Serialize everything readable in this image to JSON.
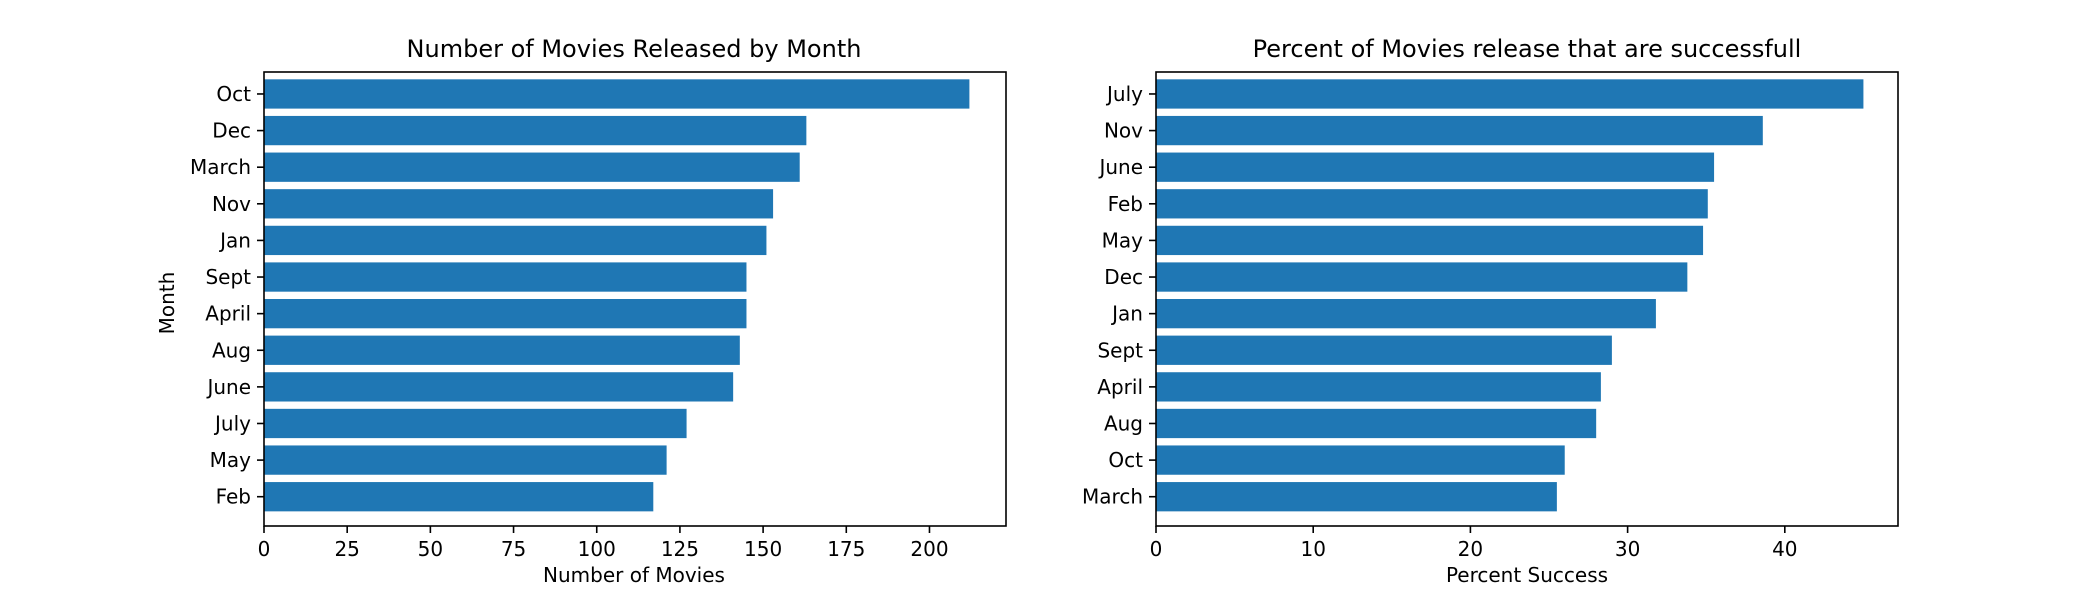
{
  "chart_data": [
    {
      "type": "bar",
      "orientation": "horizontal",
      "title": "Number of Movies Released by Month",
      "xlabel": "Number of Movies",
      "ylabel": "Month",
      "categories": [
        "Oct",
        "Dec",
        "March",
        "Nov",
        "Jan",
        "Sept",
        "April",
        "Aug",
        "June",
        "July",
        "May",
        "Feb"
      ],
      "values": [
        212,
        163,
        161,
        153,
        151,
        145,
        145,
        143,
        141,
        127,
        121,
        117
      ],
      "xlim": [
        0,
        223
      ],
      "xticks": [
        0,
        25,
        50,
        75,
        100,
        125,
        150,
        175,
        200
      ],
      "bar_color": "#1f77b4",
      "grid": false
    },
    {
      "type": "bar",
      "orientation": "horizontal",
      "title": "Percent of Movies release that are successfull",
      "xlabel": "Percent Success",
      "ylabel": "",
      "categories": [
        "July",
        "Nov",
        "June",
        "Feb",
        "May",
        "Dec",
        "Jan",
        "Sept",
        "April",
        "Aug",
        "Oct",
        "March"
      ],
      "values": [
        45.0,
        38.6,
        35.5,
        35.1,
        34.8,
        33.8,
        31.8,
        29.0,
        28.3,
        28.0,
        26.0,
        25.5
      ],
      "xlim": [
        0,
        47.2
      ],
      "xticks": [
        0,
        10,
        20,
        30,
        40
      ],
      "bar_color": "#1f77b4",
      "grid": false
    }
  ]
}
